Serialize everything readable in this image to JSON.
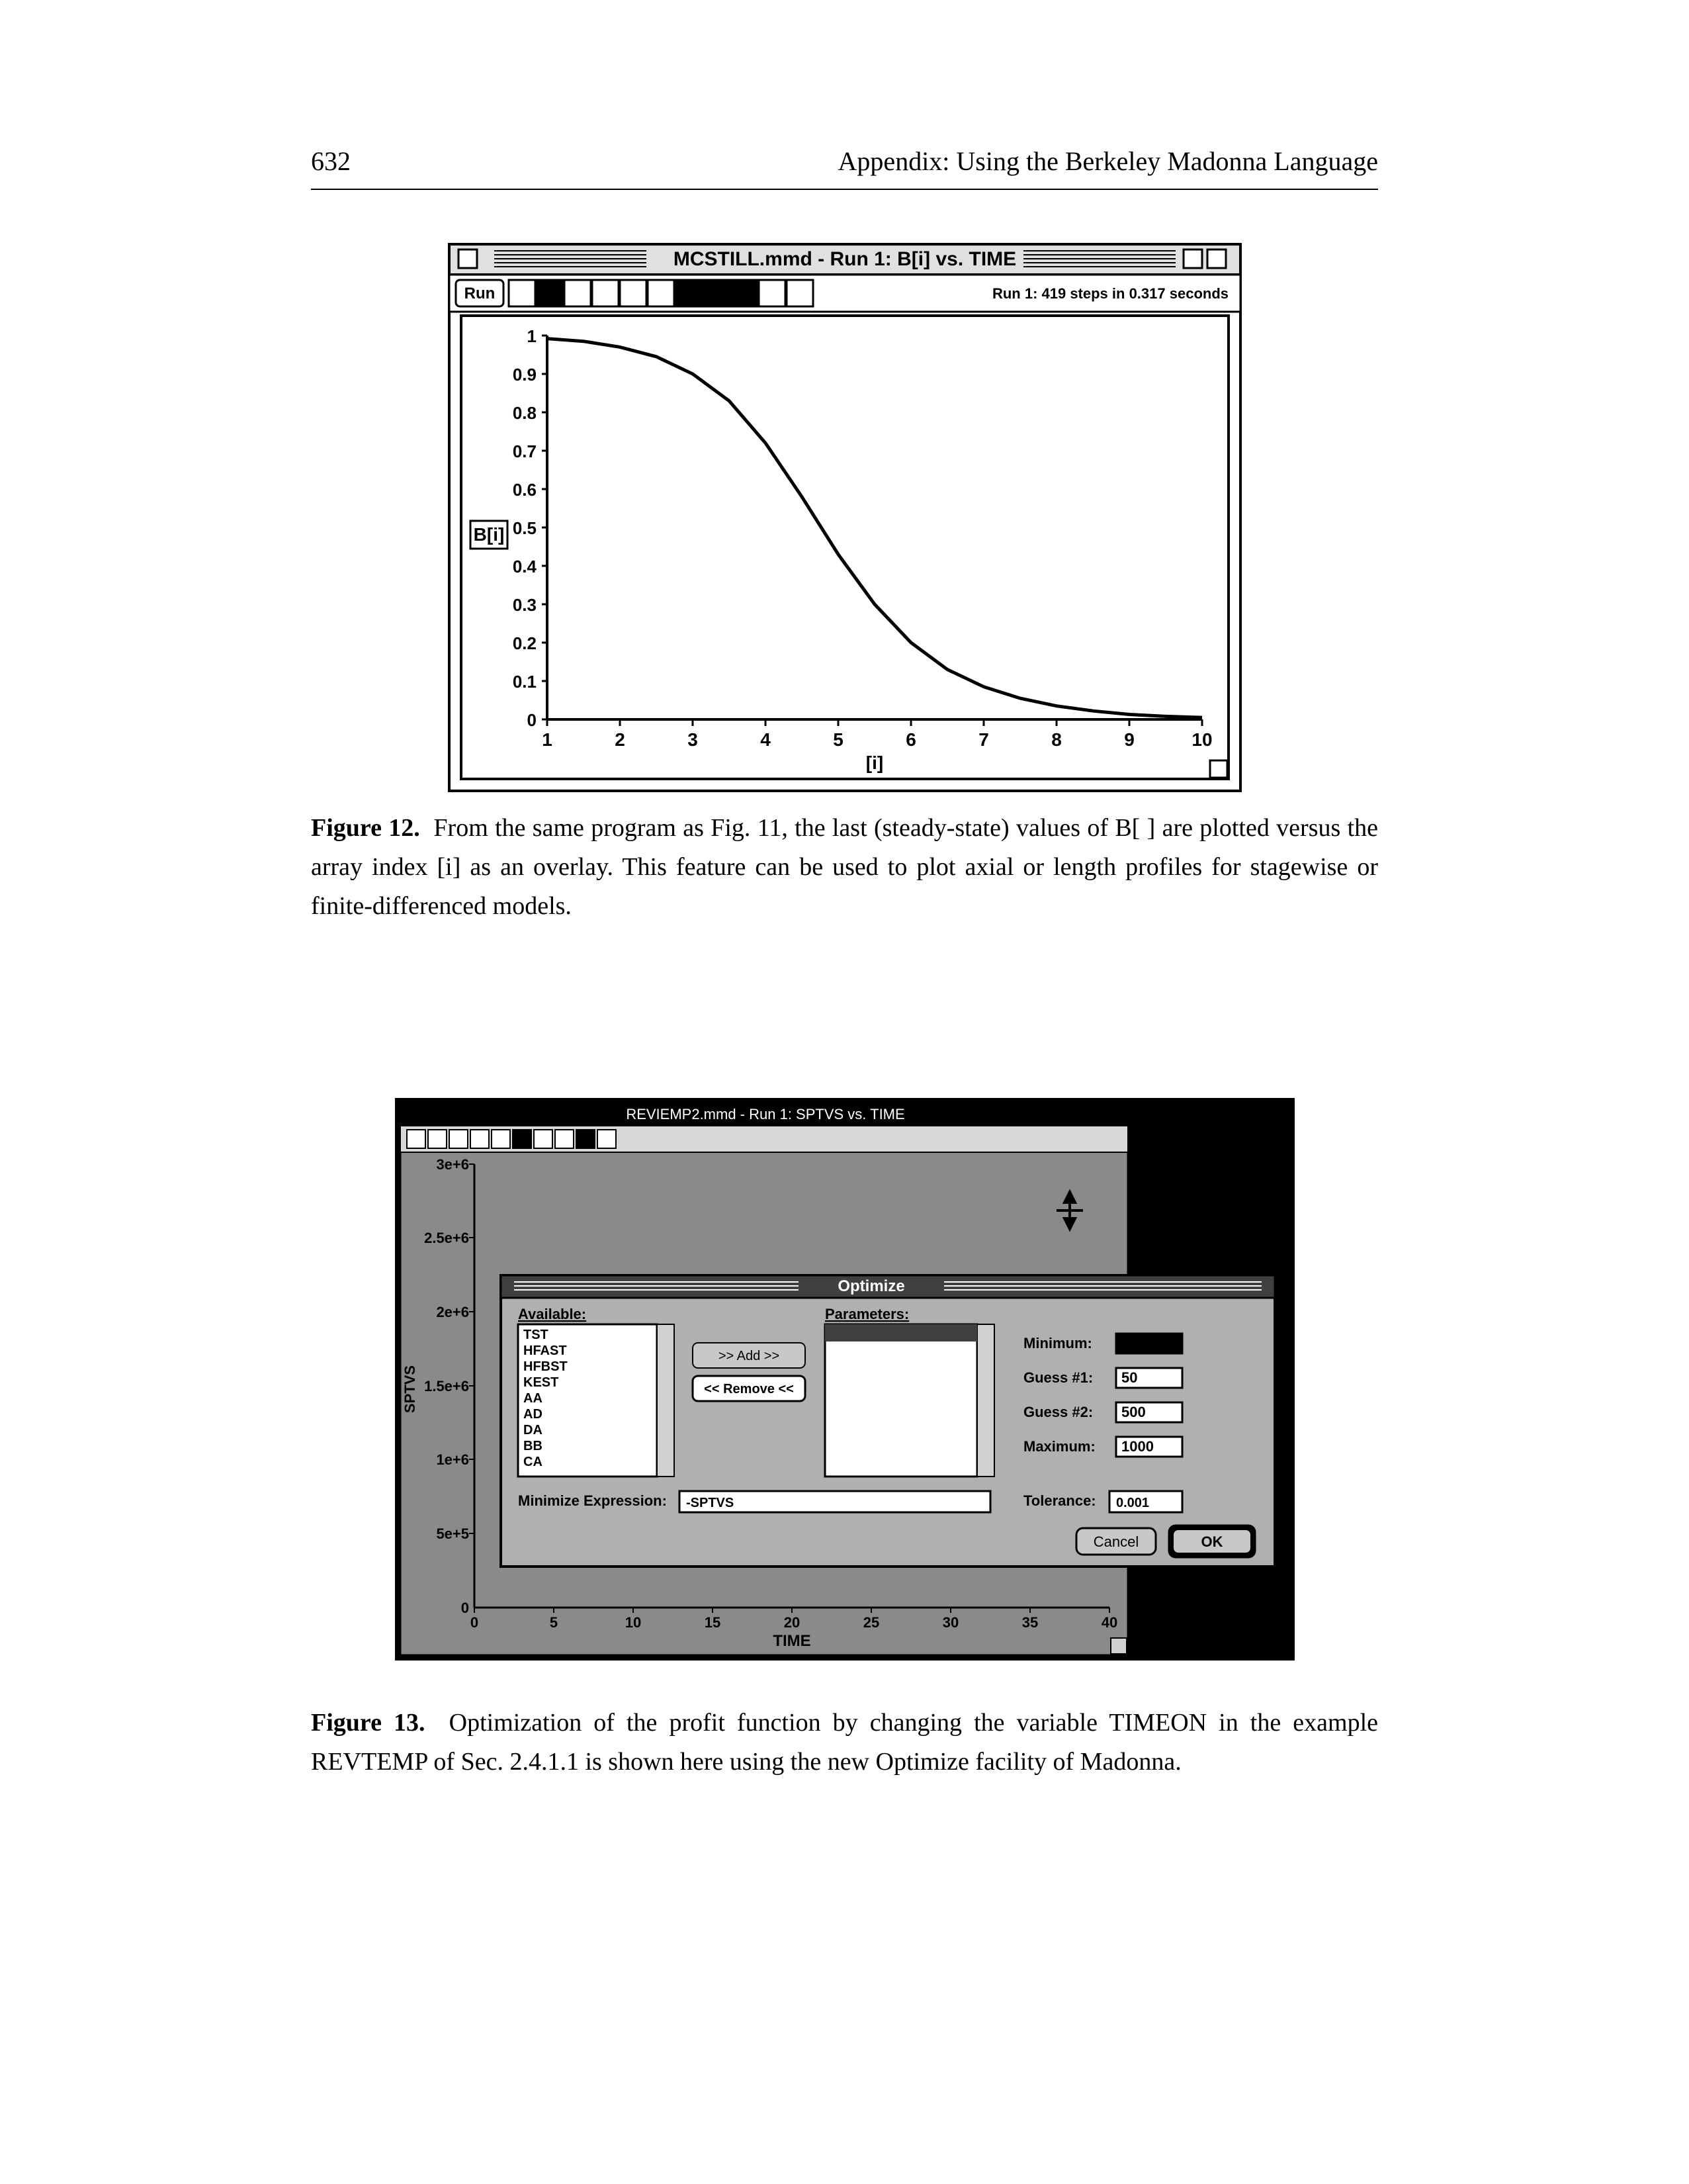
{
  "header": {
    "page_number": "632",
    "running_head": "Appendix: Using the Berkeley Madonna Language"
  },
  "figure12": {
    "window_title": "MCSTILL.mmd - Run 1: B[i] vs. TIME",
    "status_text": "Run 1: 419 steps in 0.317 seconds",
    "run_button": "Run",
    "y_ticks": [
      "1",
      "0.9",
      "0.8",
      "0.7",
      "0.6",
      "0.5",
      "0.4",
      "0.3",
      "0.2",
      "0.1",
      "0"
    ],
    "y_axis_label": "B[i]",
    "x_ticks": [
      "1",
      "2",
      "3",
      "4",
      "5",
      "6",
      "7",
      "8",
      "9",
      "10"
    ],
    "x_axis_label": "[i]",
    "colors": {
      "border": "#000000",
      "window_bg": "#d8d8d8",
      "plot_bg": "#ffffff",
      "line": "#000000",
      "frame": "#000000"
    },
    "curve": [
      [
        1,
        0.992
      ],
      [
        1.5,
        0.985
      ],
      [
        2,
        0.97
      ],
      [
        2.5,
        0.945
      ],
      [
        3,
        0.9
      ],
      [
        3.5,
        0.83
      ],
      [
        4,
        0.72
      ],
      [
        4.5,
        0.58
      ],
      [
        5,
        0.43
      ],
      [
        5.5,
        0.3
      ],
      [
        6,
        0.2
      ],
      [
        6.5,
        0.13
      ],
      [
        7,
        0.085
      ],
      [
        7.5,
        0.055
      ],
      [
        8,
        0.035
      ],
      [
        8.5,
        0.022
      ],
      [
        9,
        0.013
      ],
      [
        9.5,
        0.008
      ],
      [
        10,
        0.005
      ]
    ],
    "caption_lead": "Figure 12.",
    "caption_text": "From the same program as Fig. 11, the last (steady-state) values of B[ ] are plotted versus the array index [i] as an overlay. This feature can be used to plot axial or length profiles for stagewise or finite-differenced models."
  },
  "figure13": {
    "window_title": "REVIEMP2.mmd - Run 1: SPTVS vs. TIME",
    "dialog_title": "Optimize",
    "y_ticks": [
      "3e+6",
      "2.5e+6",
      "2e+6",
      "1.5e+6",
      "1e+6",
      "5e+5",
      "0"
    ],
    "x_ticks": [
      "0",
      "5",
      "10",
      "15",
      "20",
      "25",
      "30",
      "35",
      "40"
    ],
    "x_axis_label": "TIME",
    "y_axis_label": "SPTVS",
    "available_label": "Available:",
    "parameters_label": "Parameters:",
    "available_items": [
      "TST",
      "HFAST",
      "HFBST",
      "KEST",
      "AA",
      "AD",
      "DA",
      "BB",
      "CA"
    ],
    "btn_add": ">> Add >>",
    "btn_remove": "<< Remove <<",
    "min_label": "Minimum:",
    "guess1_label": "Guess #1:",
    "guess1_value": "50",
    "guess2_label": "Guess #2:",
    "guess2_value": "500",
    "max_label": "Maximum:",
    "max_value": "1000",
    "tol_label": "Tolerance:",
    "tol_value": "0.001",
    "min_expr_label": "Minimize Expression:",
    "min_expr_value": "-SPTVS",
    "btn_cancel": "Cancel",
    "btn_ok": "OK",
    "colors": {
      "dialog_bg": "#b0b0b0",
      "dialog_border": "#000000",
      "input_bg": "#ffffff",
      "plot_bg": "#8a8a8a",
      "window_bg": "#000000"
    },
    "caption_lead": "Figure 13.",
    "caption_text": "Optimization of the profit function by changing the variable TIMEON in the example REVTEMP of Sec. 2.4.1.1 is shown here using the new Optimize facility of Madonna."
  }
}
